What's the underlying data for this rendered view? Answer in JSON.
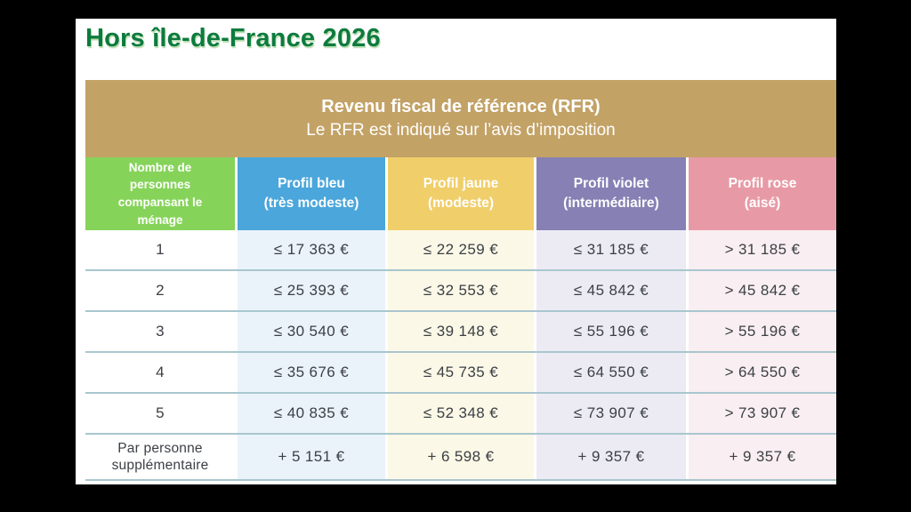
{
  "page": {
    "title": "Hors île-de-France 2026"
  },
  "banner": {
    "title": "Revenu fiscal de référence (RFR)",
    "subtitle": "Le RFR est indiqué sur l’avis d’imposition"
  },
  "table": {
    "header": {
      "household": {
        "lines": [
          "Nombre de",
          "personnes",
          "compansant le",
          "ménage"
        ]
      },
      "bleu": {
        "lines": [
          "Profil bleu",
          "(très modeste)"
        ]
      },
      "jaune": {
        "lines": [
          "Profil jaune",
          "(modeste)"
        ]
      },
      "violet": {
        "lines": [
          "Profil violet",
          "(intermédiaire)"
        ]
      },
      "rose": {
        "lines": [
          "Profil rose",
          "(aisé)"
        ]
      }
    },
    "rows": [
      {
        "cells": [
          "1",
          "≤ 17 363 €",
          "≤ 22 259 €",
          "≤ 31 185 €",
          "> 31 185 €"
        ]
      },
      {
        "cells": [
          "2",
          "≤ 25 393 €",
          "≤ 32 553 €",
          "≤ 45 842 €",
          "> 45 842 €"
        ]
      },
      {
        "cells": [
          "3",
          "≤ 30 540 €",
          "≤ 39 148 €",
          "≤ 55 196 €",
          "> 55 196 €"
        ]
      },
      {
        "cells": [
          "4",
          "≤ 35 676 €",
          "≤ 45 735 €",
          "≤ 64 550 €",
          "> 64 550 €"
        ]
      },
      {
        "cells": [
          "5",
          "≤ 40 835 €",
          "≤ 52 348 €",
          "≤ 73 907 €",
          "> 73 907 €"
        ]
      },
      {
        "cells": [
          "Par personne supplémentaire",
          "+ 5 151 €",
          "+ 6 598 €",
          "+ 9 357 €",
          "+ 9 357 €"
        ]
      }
    ]
  },
  "colors": {
    "title_green": "#0d7b3e",
    "banner_gold": "#c3a266",
    "header_green": "#86d35a",
    "header_blue": "#4aa6db",
    "header_yellow": "#f0ce6a",
    "header_violet": "#8780b4",
    "header_rose": "#e79aa6",
    "tint_blue": "#eaf3fa",
    "tint_yellow": "#fbf8e7",
    "tint_violet": "#ecebf4",
    "tint_rose": "#f9eef1",
    "row_divider": "#a9c6ce",
    "cell_text": "#3c4045"
  }
}
